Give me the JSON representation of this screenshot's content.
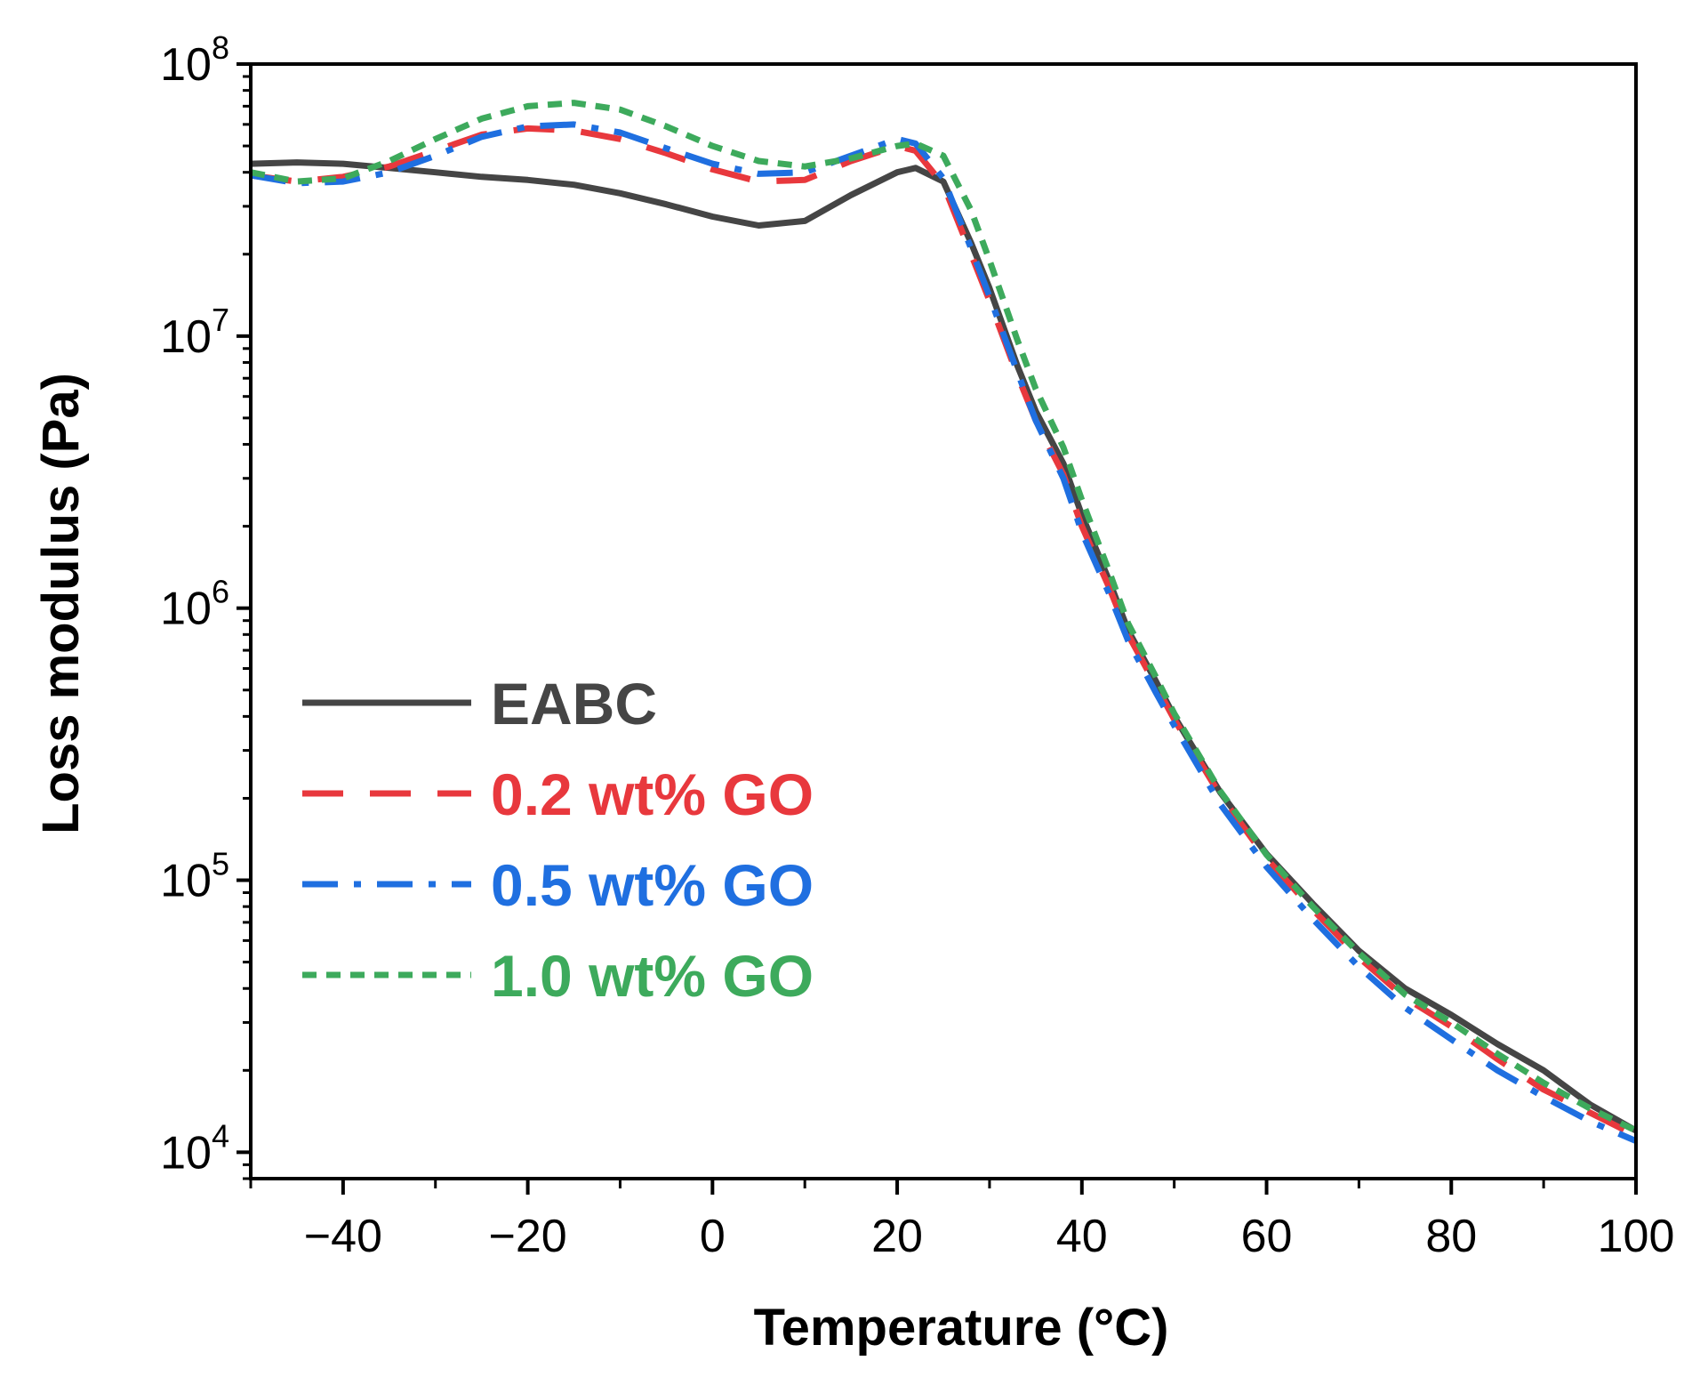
{
  "chart_data": {
    "type": "line",
    "title": "",
    "xlabel": "Temperature (°C)",
    "ylabel": "Loss modulus (Pa)",
    "x_scale": "linear",
    "y_scale": "log",
    "xlim": [
      -50,
      100
    ],
    "ylim": [
      8000,
      100000000
    ],
    "x_ticks": [
      -40,
      -20,
      0,
      20,
      40,
      60,
      80,
      100
    ],
    "x_tick_labels": [
      "−40",
      "−20",
      "0",
      "20",
      "40",
      "60",
      "80",
      "100"
    ],
    "y_ticks": [
      10000,
      100000,
      1000000,
      10000000,
      100000000
    ],
    "y_tick_labels": [
      {
        "base": "10",
        "exp": "4"
      },
      {
        "base": "10",
        "exp": "5"
      },
      {
        "base": "10",
        "exp": "6"
      },
      {
        "base": "10",
        "exp": "7"
      },
      {
        "base": "10",
        "exp": "8"
      }
    ],
    "grid": false,
    "legend_position": "left",
    "x": [
      -50,
      -45,
      -40,
      -35,
      -30,
      -25,
      -20,
      -15,
      -10,
      -5,
      0,
      5,
      10,
      15,
      20,
      22,
      25,
      28,
      30,
      33,
      35,
      38,
      40,
      43,
      45,
      48,
      50,
      55,
      60,
      65,
      70,
      75,
      80,
      85,
      90,
      95,
      100
    ],
    "series": [
      {
        "name": "EABC",
        "color": "#454545",
        "dash": "solid",
        "values": [
          43000000,
          43500000,
          43000000,
          41500000,
          40000000,
          38500000,
          37500000,
          36000000,
          33500000,
          30500000,
          27500000,
          25500000,
          26500000,
          33000000,
          40000000,
          41500000,
          37000000,
          22000000,
          15000000,
          7800000,
          5300000,
          3400000,
          2200000,
          1250000,
          830000,
          540000,
          400000,
          210000,
          125000,
          82000,
          55000,
          40000,
          32000,
          25000,
          20000,
          15000,
          12000
        ]
      },
      {
        "name": "0.2 wt% GO",
        "color": "#e8383d",
        "dash": "long-dash",
        "values": [
          39000000,
          37000000,
          38500000,
          42000000,
          48000000,
          55000000,
          58000000,
          57000000,
          53000000,
          47000000,
          41000000,
          37000000,
          37500000,
          44000000,
          50000000,
          48000000,
          36000000,
          20000000,
          13500000,
          7200000,
          4900000,
          3100000,
          2000000,
          1180000,
          800000,
          520000,
          390000,
          205000,
          120000,
          78000,
          52000,
          37000,
          29000,
          22000,
          17000,
          14000,
          11500
        ]
      },
      {
        "name": "0.5 wt% GO",
        "color": "#1f6fe0",
        "dash": "dash-dot",
        "values": [
          39000000,
          36500000,
          37000000,
          40000000,
          46000000,
          54000000,
          59000000,
          60000000,
          56000000,
          49000000,
          43000000,
          39500000,
          40000000,
          46000000,
          53000000,
          51000000,
          38000000,
          21000000,
          14000000,
          7400000,
          4900000,
          3000000,
          1900000,
          1120000,
          760000,
          490000,
          370000,
          190000,
          112000,
          72000,
          48000,
          34000,
          26000,
          20000,
          16000,
          13000,
          11000
        ]
      },
      {
        "name": "1.0 wt% GO",
        "color": "#3daa5c",
        "dash": "short-dash",
        "values": [
          40000000,
          37000000,
          38000000,
          44000000,
          53000000,
          63000000,
          70000000,
          72000000,
          68000000,
          59000000,
          50000000,
          44000000,
          42000000,
          45000000,
          50000000,
          51000000,
          46000000,
          29000000,
          19000000,
          9700000,
          6400000,
          3900000,
          2500000,
          1350000,
          880000,
          560000,
          410000,
          212000,
          124000,
          80000,
          54000,
          38000,
          30000,
          23000,
          18000,
          14500,
          12000
        ]
      }
    ]
  }
}
